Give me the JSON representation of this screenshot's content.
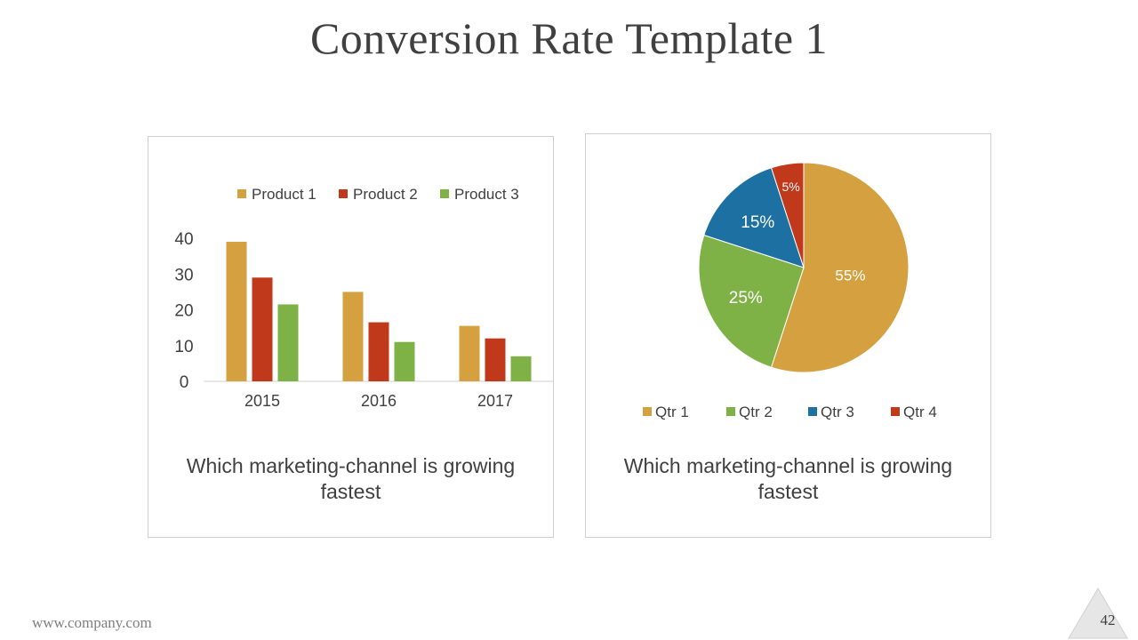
{
  "slide": {
    "title": "Conversion Rate Template 1",
    "footer_url": "www.company.com",
    "page_number": "42"
  },
  "colors": {
    "product1": "#D4A040",
    "product2": "#C0391B",
    "product3": "#7FB246",
    "qtr1": "#D4A040",
    "qtr2": "#7FB246",
    "qtr3": "#1D70A2",
    "qtr4": "#C0391B"
  },
  "chart_data": [
    {
      "type": "bar",
      "categories": [
        "2015",
        "2016",
        "2017"
      ],
      "series": [
        {
          "name": "Product 1",
          "values": [
            39,
            25,
            15.5
          ]
        },
        {
          "name": "Product 2",
          "values": [
            29,
            16.5,
            12
          ]
        },
        {
          "name": "Product 3",
          "values": [
            21.5,
            11,
            7
          ]
        }
      ],
      "ylim": [
        0,
        40
      ],
      "yticks": [
        "0",
        "10",
        "20",
        "30",
        "40"
      ],
      "legend": "top",
      "grid": false,
      "caption": "Which marketing-channel is growing fastest"
    },
    {
      "type": "pie",
      "labels": [
        "Qtr 1",
        "Qtr 2",
        "Qtr 3",
        "Qtr 4"
      ],
      "values": [
        55,
        25,
        15,
        5
      ],
      "data_labels": [
        "55%",
        "25%",
        "15%",
        "5%"
      ],
      "legend": "bottom",
      "caption": "Which marketing-channel is growing fastest"
    }
  ]
}
